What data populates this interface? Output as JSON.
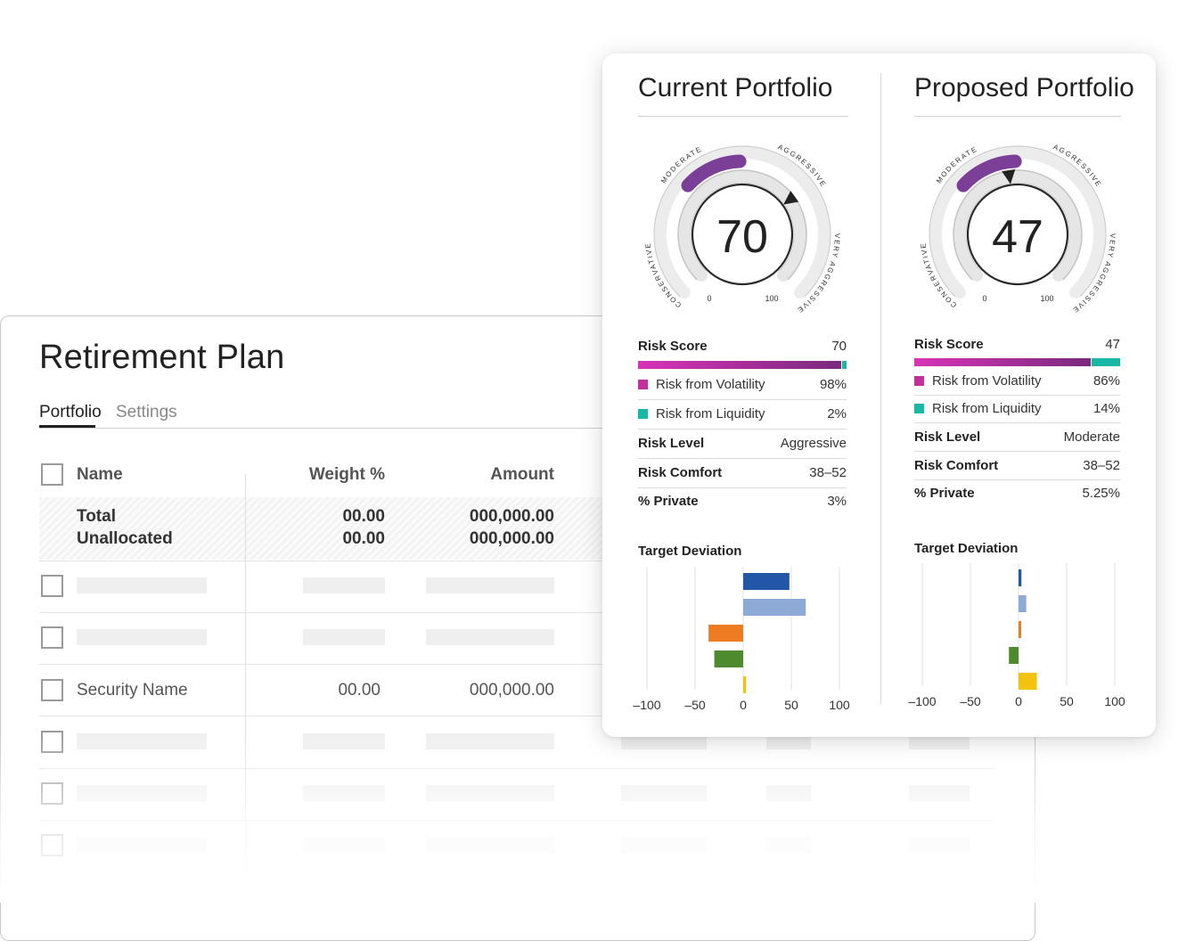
{
  "plan": {
    "title": "Retirement Plan",
    "tabs": [
      {
        "label": "Portfolio",
        "active": true
      },
      {
        "label": "Settings",
        "active": false
      }
    ],
    "columns": {
      "name": "Name",
      "weight": "Weight %",
      "amount": "Amount"
    },
    "total": {
      "label_line1": "Total",
      "label_line2": "Unallocated",
      "weight_total": "00.00",
      "weight_unallocated": "00.00",
      "amount_total": "000,000.00",
      "amount_unallocated": "000,000.00"
    },
    "security_row": {
      "name": "Security Name",
      "weight": "00.00",
      "amount": "000,000.00"
    }
  },
  "gauge_labels": {
    "conservative": "CONSERVATIVE",
    "moderate": "MODERATE",
    "aggressive": "AGGRESSIVE",
    "very_aggressive": "VERY AGGRESSIVE",
    "min": "0",
    "max": "100"
  },
  "colors": {
    "volatility": "#c2309c",
    "liquidity": "#17b8a6",
    "gauge_purple": "#7b3f98",
    "dev_blue_dark": "#2256a6",
    "dev_blue_light": "#8da9d6",
    "dev_orange": "#ef7b22",
    "dev_green": "#4e8a2e",
    "dev_yellow": "#f2c20d"
  },
  "current": {
    "title": "Current Portfolio",
    "score": "70",
    "score_value": 70,
    "risk_score_label": "Risk Score",
    "risk_score_value": "70",
    "volatility": {
      "label": "Risk from Volatility",
      "value": "98%",
      "fraction": 0.98
    },
    "liquidity": {
      "label": "Risk from Liquidity",
      "value": "2%",
      "fraction": 0.02
    },
    "risk_level": {
      "label": "Risk Level",
      "value": "Aggressive"
    },
    "risk_comfort": {
      "label": "Risk Comfort",
      "value": "38–52"
    },
    "private": {
      "label": "% Private",
      "value": "3%"
    },
    "deviation_title": "Target Deviation"
  },
  "proposed": {
    "title": "Proposed Portfolio",
    "score": "47",
    "score_value": 47,
    "risk_score_label": "Risk Score",
    "risk_score_value": "47",
    "volatility": {
      "label": "Risk from Volatility",
      "value": "86%",
      "fraction": 0.86
    },
    "liquidity": {
      "label": "Risk from Liquidity",
      "value": "14%",
      "fraction": 0.14
    },
    "risk_level": {
      "label": "Risk Level",
      "value": "Moderate"
    },
    "risk_comfort": {
      "label": "Risk Comfort",
      "value": "38–52"
    },
    "private": {
      "label": "% Private",
      "value": "5.25%"
    },
    "deviation_title": "Target Deviation"
  },
  "chart_data": [
    {
      "type": "bar",
      "orientation": "horizontal",
      "title": "Target Deviation",
      "values": [
        48,
        65,
        -36,
        -30,
        3
      ],
      "xlim": [
        -100,
        100
      ],
      "xticks": [
        "–100",
        "–50",
        "0",
        "50",
        "100"
      ],
      "grid": true
    },
    {
      "type": "bar",
      "orientation": "horizontal",
      "title": "Target Deviation",
      "values": [
        3,
        8,
        2,
        -10,
        19
      ],
      "xlim": [
        -100,
        100
      ],
      "xticks": [
        "–100",
        "–50",
        "0",
        "50",
        "100"
      ],
      "grid": true
    }
  ]
}
